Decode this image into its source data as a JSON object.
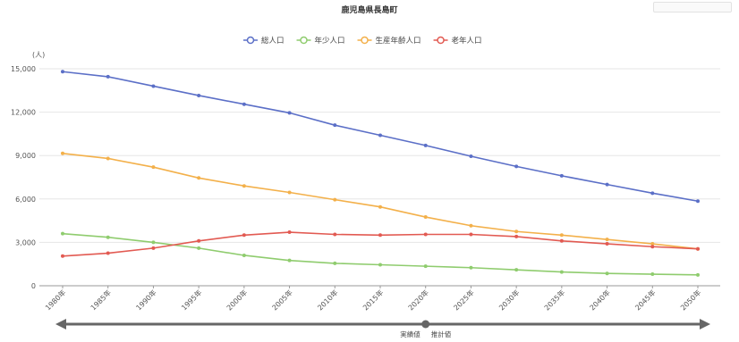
{
  "chart_data": {
    "type": "line",
    "title": "鹿児島県長島町",
    "ylabel": "(人)",
    "ylim": [
      0,
      15000
    ],
    "yticks": [
      "0",
      "3,000",
      "6,000",
      "9,000",
      "12,000",
      "15,000"
    ],
    "ytick_values": [
      0,
      3000,
      6000,
      9000,
      12000,
      15000
    ],
    "categories": [
      "1980年",
      "1985年",
      "1990年",
      "1995年",
      "2000年",
      "2005年",
      "2010年",
      "2015年",
      "2020年",
      "2025年",
      "2030年",
      "2035年",
      "2040年",
      "2045年",
      "2050年"
    ],
    "x": [
      1980,
      1985,
      1990,
      1995,
      2000,
      2005,
      2010,
      2015,
      2020,
      2025,
      2030,
      2035,
      2040,
      2045,
      2050
    ],
    "grid": true,
    "legend_position": "top",
    "series": [
      {
        "name": "総人口",
        "color": "#5b6fc7",
        "values": [
          14800,
          14450,
          13800,
          13150,
          12550,
          11950,
          11100,
          10400,
          9700,
          8950,
          8250,
          7600,
          7000,
          6400,
          5850
        ]
      },
      {
        "name": "年少人口",
        "color": "#8fcc6e",
        "values": [
          3600,
          3350,
          3000,
          2600,
          2100,
          1750,
          1550,
          1450,
          1350,
          1250,
          1100,
          950,
          850,
          800,
          750
        ]
      },
      {
        "name": "生産年齢人口",
        "color": "#f3b04a",
        "values": [
          9150,
          8800,
          8200,
          7450,
          6900,
          6450,
          5950,
          5450,
          4750,
          4150,
          3750,
          3500,
          3200,
          2900,
          2550
        ]
      },
      {
        "name": "老年人口",
        "color": "#e25a52",
        "values": [
          2050,
          2250,
          2600,
          3100,
          3500,
          3700,
          3550,
          3500,
          3550,
          3550,
          3400,
          3100,
          2900,
          2700,
          2550
        ]
      }
    ],
    "annotations": {
      "actual_label": "実績値",
      "projected_label": "推計値"
    }
  },
  "colors": {
    "axis": "#999999",
    "grid": "#e6e6e6",
    "arrow": "#666666"
  }
}
